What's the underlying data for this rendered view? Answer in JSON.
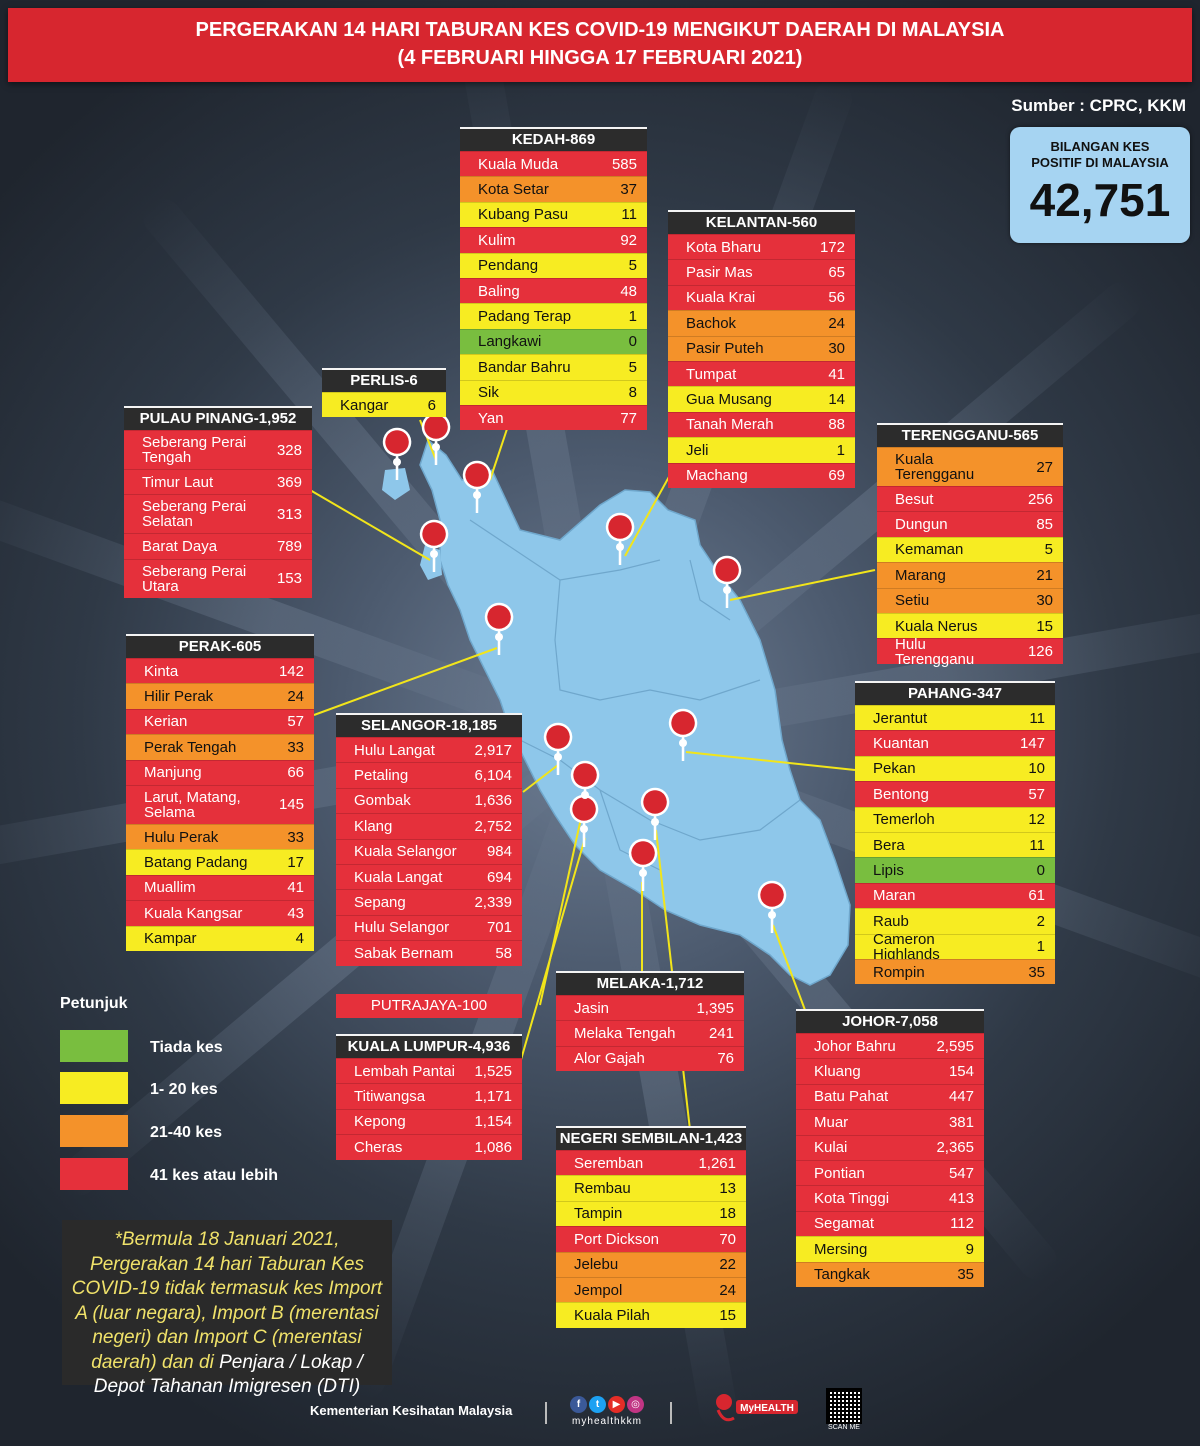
{
  "title": {
    "line1": "PERGERAKAN 14 HARI TABURAN KES COVID-19 MENGIKUT DAERAH DI MALAYSIA",
    "line2": "(4 FEBRUARI HINGGA 17 FEBRUARI 2021)"
  },
  "source": "Sumber : CPRC, KKM",
  "total": {
    "label": "BILANGAN KES\nPOSITIF DI MALAYSIA",
    "value": "42,751"
  },
  "colors": {
    "red": "#e5303b",
    "orange": "#f4922a",
    "yellow": "#f7ec22",
    "green": "#79be3f",
    "map": "#8ec7ea",
    "title_bar": "#d7262f"
  },
  "tables": {
    "kedah": {
      "title": "KEDAH-869",
      "rows": [
        {
          "name": "Kuala Muda",
          "value": "585",
          "level": "red"
        },
        {
          "name": "Kota Setar",
          "value": "37",
          "level": "orange"
        },
        {
          "name": "Kubang Pasu",
          "value": "11",
          "level": "yellow"
        },
        {
          "name": "Kulim",
          "value": "92",
          "level": "red"
        },
        {
          "name": "Pendang",
          "value": "5",
          "level": "yellow"
        },
        {
          "name": "Baling",
          "value": "48",
          "level": "red"
        },
        {
          "name": "Padang Terap",
          "value": "1",
          "level": "yellow"
        },
        {
          "name": "Langkawi",
          "value": "0",
          "level": "green"
        },
        {
          "name": "Bandar Bahru",
          "value": "5",
          "level": "yellow"
        },
        {
          "name": "Sik",
          "value": "8",
          "level": "yellow"
        },
        {
          "name": "Yan",
          "value": "77",
          "level": "red"
        }
      ]
    },
    "kelantan": {
      "title": "KELANTAN-560",
      "rows": [
        {
          "name": "Kota Bharu",
          "value": "172",
          "level": "red"
        },
        {
          "name": "Pasir Mas",
          "value": "65",
          "level": "red"
        },
        {
          "name": "Kuala Krai",
          "value": "56",
          "level": "red"
        },
        {
          "name": "Bachok",
          "value": "24",
          "level": "orange"
        },
        {
          "name": "Pasir Puteh",
          "value": "30",
          "level": "orange"
        },
        {
          "name": "Tumpat",
          "value": "41",
          "level": "red"
        },
        {
          "name": "Gua Musang",
          "value": "14",
          "level": "yellow"
        },
        {
          "name": "Tanah Merah",
          "value": "88",
          "level": "red"
        },
        {
          "name": "Jeli",
          "value": "1",
          "level": "yellow"
        },
        {
          "name": "Machang",
          "value": "69",
          "level": "red"
        }
      ]
    },
    "perlis": {
      "title": "PERLIS-6",
      "rows": [
        {
          "name": "Kangar",
          "value": "6",
          "level": "yellow"
        }
      ]
    },
    "pulau_pinang": {
      "title": "PULAU PINANG-1,952",
      "rows": [
        {
          "name": "Seberang Perai Tengah",
          "value": "328",
          "level": "red",
          "tall": true
        },
        {
          "name": "Timur Laut",
          "value": "369",
          "level": "red"
        },
        {
          "name": "Seberang Perai Selatan",
          "value": "313",
          "level": "red",
          "tall": true
        },
        {
          "name": "Barat Daya",
          "value": "789",
          "level": "red"
        },
        {
          "name": "Seberang Perai Utara",
          "value": "153",
          "level": "red",
          "tall": true
        }
      ]
    },
    "terengganu": {
      "title": "TERENGGANU-565",
      "rows": [
        {
          "name": "Kuala Terengganu",
          "value": "27",
          "level": "orange",
          "tall": true
        },
        {
          "name": "Besut",
          "value": "256",
          "level": "red"
        },
        {
          "name": "Dungun",
          "value": "85",
          "level": "red"
        },
        {
          "name": "Kemaman",
          "value": "5",
          "level": "yellow"
        },
        {
          "name": "Marang",
          "value": "21",
          "level": "orange"
        },
        {
          "name": "Setiu",
          "value": "30",
          "level": "orange"
        },
        {
          "name": "Kuala Nerus",
          "value": "15",
          "level": "yellow"
        },
        {
          "name": "Hulu Terengganu",
          "value": "126",
          "level": "red"
        }
      ]
    },
    "perak": {
      "title": "PERAK-605",
      "rows": [
        {
          "name": "Kinta",
          "value": "142",
          "level": "red"
        },
        {
          "name": "Hilir Perak",
          "value": "24",
          "level": "orange"
        },
        {
          "name": "Kerian",
          "value": "57",
          "level": "red"
        },
        {
          "name": "Perak Tengah",
          "value": "33",
          "level": "orange"
        },
        {
          "name": "Manjung",
          "value": "66",
          "level": "red"
        },
        {
          "name": "Larut, Matang, Selama",
          "value": "145",
          "level": "red",
          "tall": true
        },
        {
          "name": "Hulu Perak",
          "value": "33",
          "level": "orange"
        },
        {
          "name": "Batang Padang",
          "value": "17",
          "level": "yellow"
        },
        {
          "name": "Muallim",
          "value": "41",
          "level": "red"
        },
        {
          "name": "Kuala Kangsar",
          "value": "43",
          "level": "red"
        },
        {
          "name": "Kampar",
          "value": "4",
          "level": "yellow"
        }
      ]
    },
    "selangor": {
      "title": "SELANGOR-18,185",
      "rows": [
        {
          "name": "Hulu Langat",
          "value": "2,917",
          "level": "red"
        },
        {
          "name": "Petaling",
          "value": "6,104",
          "level": "red"
        },
        {
          "name": "Gombak",
          "value": "1,636",
          "level": "red"
        },
        {
          "name": "Klang",
          "value": "2,752",
          "level": "red"
        },
        {
          "name": "Kuala Selangor",
          "value": "984",
          "level": "red"
        },
        {
          "name": "Kuala Langat",
          "value": "694",
          "level": "red"
        },
        {
          "name": "Sepang",
          "value": "2,339",
          "level": "red"
        },
        {
          "name": "Hulu Selangor",
          "value": "701",
          "level": "red"
        },
        {
          "name": "Sabak Bernam",
          "value": "58",
          "level": "red"
        }
      ]
    },
    "pahang": {
      "title": "PAHANG-347",
      "rows": [
        {
          "name": "Jerantut",
          "value": "11",
          "level": "yellow"
        },
        {
          "name": "Kuantan",
          "value": "147",
          "level": "red"
        },
        {
          "name": "Pekan",
          "value": "10",
          "level": "yellow"
        },
        {
          "name": "Bentong",
          "value": "57",
          "level": "red"
        },
        {
          "name": "Temerloh",
          "value": "12",
          "level": "yellow"
        },
        {
          "name": "Bera",
          "value": "11",
          "level": "yellow"
        },
        {
          "name": "Lipis",
          "value": "0",
          "level": "green"
        },
        {
          "name": "Maran",
          "value": "61",
          "level": "red"
        },
        {
          "name": "Raub",
          "value": "2",
          "level": "yellow"
        },
        {
          "name": "Cameron Highlands",
          "value": "1",
          "level": "yellow"
        },
        {
          "name": "Rompin",
          "value": "35",
          "level": "orange"
        }
      ]
    },
    "melaka": {
      "title": "MELAKA-1,712",
      "rows": [
        {
          "name": "Jasin",
          "value": "1,395",
          "level": "red"
        },
        {
          "name": "Melaka Tengah",
          "value": "241",
          "level": "red"
        },
        {
          "name": "Alor Gajah",
          "value": "76",
          "level": "red"
        }
      ]
    },
    "kuala_lumpur": {
      "title": "KUALA LUMPUR-4,936",
      "rows": [
        {
          "name": "Lembah Pantai",
          "value": "1,525",
          "level": "red"
        },
        {
          "name": "Titiwangsa",
          "value": "1,171",
          "level": "red"
        },
        {
          "name": "Kepong",
          "value": "1,154",
          "level": "red"
        },
        {
          "name": "Cheras",
          "value": "1,086",
          "level": "red"
        }
      ]
    },
    "johor": {
      "title": "JOHOR-7,058",
      "rows": [
        {
          "name": "Johor Bahru",
          "value": "2,595",
          "level": "red"
        },
        {
          "name": "Kluang",
          "value": "154",
          "level": "red"
        },
        {
          "name": "Batu Pahat",
          "value": "447",
          "level": "red"
        },
        {
          "name": "Muar",
          "value": "381",
          "level": "red"
        },
        {
          "name": "Kulai",
          "value": "2,365",
          "level": "red"
        },
        {
          "name": "Pontian",
          "value": "547",
          "level": "red"
        },
        {
          "name": "Kota Tinggi",
          "value": "413",
          "level": "red"
        },
        {
          "name": "Segamat",
          "value": "112",
          "level": "red"
        },
        {
          "name": "Mersing",
          "value": "9",
          "level": "yellow"
        },
        {
          "name": "Tangkak",
          "value": "35",
          "level": "orange"
        }
      ]
    },
    "negeri_sembilan": {
      "title": "NEGERI SEMBILAN-1,423",
      "rows": [
        {
          "name": "Seremban",
          "value": "1,261",
          "level": "red"
        },
        {
          "name": "Rembau",
          "value": "13",
          "level": "yellow"
        },
        {
          "name": "Tampin",
          "value": "18",
          "level": "yellow"
        },
        {
          "name": "Port Dickson",
          "value": "70",
          "level": "red"
        },
        {
          "name": "Jelebu",
          "value": "22",
          "level": "orange"
        },
        {
          "name": "Jempol",
          "value": "24",
          "level": "orange"
        },
        {
          "name": "Kuala Pilah",
          "value": "15",
          "level": "yellow"
        }
      ]
    }
  },
  "putrajaya": "PUTRAJAYA-100",
  "legend": {
    "title": "Petunjuk",
    "items": [
      "Tiada kes",
      "1- 20 kes",
      "21-40 kes",
      "41 kes atau lebih"
    ]
  },
  "note": {
    "part1": "*Bermula 18 Januari 2021, Pergerakan 14 hari Taburan Kes COVID-19 tidak termasuk kes Import A (luar negara), Import B (merentasi negeri) dan Import C (merentasi daerah) dan di",
    "part2": "Penjara / Lokap / Depot Tahanan Imigresen (DTI)"
  },
  "footer": {
    "ministry": "Kementerian Kesihatan Malaysia",
    "handle": "myhealthkkm",
    "qr_label": "SCAN ME",
    "myhealth_logo": "MyHEALTH"
  }
}
